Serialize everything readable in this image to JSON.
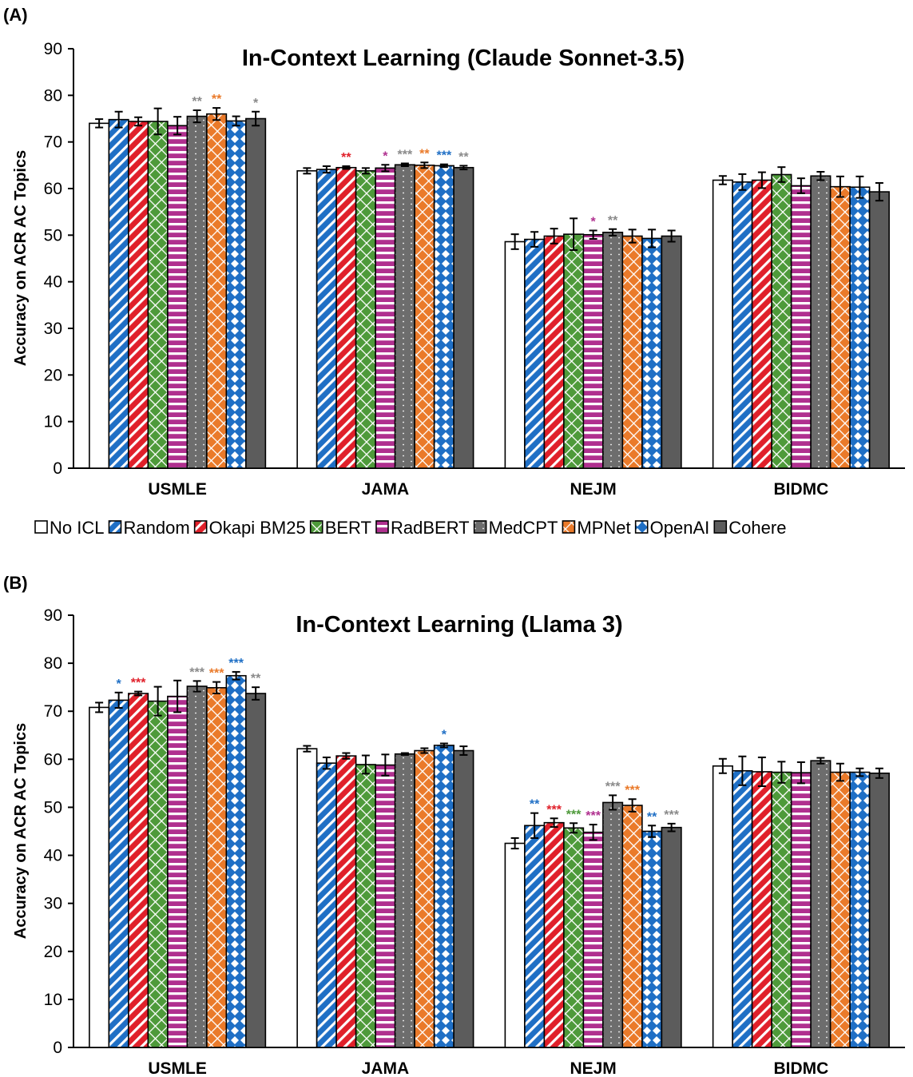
{
  "legend": {
    "entries": [
      {
        "name": "No ICL",
        "color": "#ffffff",
        "pattern": "none"
      },
      {
        "name": "Random",
        "color": "#1f6fc5",
        "pattern": "diag"
      },
      {
        "name": "Okapi BM25",
        "color": "#e0202a",
        "pattern": "diag"
      },
      {
        "name": "BERT",
        "color": "#4e9a3a",
        "pattern": "lattice"
      },
      {
        "name": "RadBERT",
        "color": "#b0308f",
        "pattern": "hstripe"
      },
      {
        "name": "MedCPT",
        "color": "#6d6d6d",
        "pattern": "dots"
      },
      {
        "name": "MPNet",
        "color": "#ea7a2a",
        "pattern": "lattice"
      },
      {
        "name": "OpenAI",
        "color": "#1f6fc5",
        "pattern": "diamond"
      },
      {
        "name": "Cohere",
        "color": "#5c5c5c",
        "pattern": "none"
      }
    ]
  },
  "chart_data": [
    {
      "type": "bar",
      "panel_label": "(A)",
      "title": "In-Context Learning (Claude Sonnet-3.5)",
      "xlabel": "",
      "ylabel": "Accuracy on ACR AC Topics",
      "ylim": [
        0,
        90
      ],
      "yticks": [
        "0",
        "10",
        "20",
        "30",
        "40",
        "50",
        "60",
        "70",
        "80",
        "90"
      ],
      "categories": [
        "USMLE",
        "JAMA",
        "NEJM",
        "BIDMC"
      ],
      "series": [
        {
          "name": "No ICL",
          "values": [
            74,
            63.8,
            48.6,
            61.8
          ],
          "errors": [
            0.9,
            0.6,
            1.6,
            0.9
          ],
          "sig": [
            "",
            "",
            "",
            ""
          ]
        },
        {
          "name": "Random",
          "values": [
            74.8,
            64.1,
            49.1,
            61.4
          ],
          "errors": [
            1.7,
            0.7,
            1.6,
            1.7
          ],
          "sig": [
            "",
            "",
            "",
            ""
          ]
        },
        {
          "name": "Okapi BM25",
          "values": [
            74.4,
            64.5,
            49.8,
            61.8
          ],
          "errors": [
            0.9,
            0.3,
            1.6,
            1.7
          ],
          "sig": [
            "",
            "**",
            "",
            ""
          ]
        },
        {
          "name": "BERT",
          "values": [
            74.4,
            63.8,
            50.2,
            63
          ],
          "errors": [
            2.8,
            0.6,
            3.4,
            1.6
          ],
          "sig": [
            "",
            "",
            "",
            ""
          ]
        },
        {
          "name": "RadBERT",
          "values": [
            73.5,
            64.4,
            50.1,
            60.6
          ],
          "errors": [
            1.9,
            0.7,
            0.9,
            1.6
          ],
          "sig": [
            "",
            "*",
            "*",
            ""
          ]
        },
        {
          "name": "MedCPT",
          "values": [
            75.5,
            65.1,
            50.6,
            62.7
          ],
          "errors": [
            1.3,
            0.3,
            0.7,
            0.9
          ],
          "sig": [
            "**",
            "***",
            "**",
            ""
          ]
        },
        {
          "name": "MPNet",
          "values": [
            76,
            65,
            49.8,
            60.4
          ],
          "errors": [
            1.3,
            0.6,
            1.4,
            2.2
          ],
          "sig": [
            "**",
            "**",
            "",
            ""
          ]
        },
        {
          "name": "OpenAI",
          "values": [
            74.5,
            64.9,
            49.3,
            60.3
          ],
          "errors": [
            1,
            0.3,
            1.9,
            2.3
          ],
          "sig": [
            "",
            "***",
            "",
            ""
          ]
        },
        {
          "name": "Cohere",
          "values": [
            75,
            64.5,
            49.8,
            59.3
          ],
          "errors": [
            1.5,
            0.4,
            1.2,
            1.9
          ],
          "sig": [
            "*",
            "**",
            "",
            ""
          ]
        }
      ]
    },
    {
      "type": "bar",
      "panel_label": "(B)",
      "title": "In-Context Learning (Llama 3)",
      "xlabel": "",
      "ylabel": "Accuracy on ACR AC Topics",
      "ylim": [
        0,
        90
      ],
      "yticks": [
        "0",
        "10",
        "20",
        "30",
        "40",
        "50",
        "60",
        "70",
        "80",
        "90"
      ],
      "categories": [
        "USMLE",
        "JAMA",
        "NEJM",
        "BIDMC"
      ],
      "series": [
        {
          "name": "No ICL",
          "values": [
            70.8,
            62.2,
            42.5,
            58.6
          ],
          "errors": [
            1,
            0.6,
            1.1,
            1.5
          ],
          "sig": [
            "",
            "",
            "",
            ""
          ]
        },
        {
          "name": "Random",
          "values": [
            72.3,
            59.2,
            46.2,
            57.6
          ],
          "errors": [
            1.6,
            1.2,
            2.6,
            3
          ]
        },
        {
          "name": "Okapi BM25",
          "values": [
            73.7,
            60.7,
            46.8,
            57.4
          ],
          "errors": [
            0.4,
            0.6,
            0.9,
            3
          ]
        },
        {
          "name": "BERT",
          "values": [
            72.1,
            58.9,
            45.7,
            57.3
          ],
          "errors": [
            3,
            1.9,
            1,
            2.2
          ]
        },
        {
          "name": "RadBERT",
          "values": [
            73.1,
            58.8,
            44.8,
            57.2
          ],
          "errors": [
            3.3,
            2.2,
            1.6,
            2.2
          ]
        },
        {
          "name": "MedCPT",
          "values": [
            75.2,
            61.1,
            51,
            59.7
          ],
          "errors": [
            1.1,
            0.2,
            1.5,
            0.6
          ]
        },
        {
          "name": "MPNet",
          "values": [
            74.9,
            61.8,
            50.4,
            57.3
          ],
          "errors": [
            1.2,
            0.5,
            1.3,
            1.8
          ]
        },
        {
          "name": "OpenAI",
          "values": [
            77.4,
            62.9,
            45,
            57.3
          ],
          "errors": [
            0.8,
            0.4,
            1.2,
            0.8
          ]
        },
        {
          "name": "Cohere",
          "values": [
            73.7,
            61.8,
            45.8,
            57.1
          ],
          "errors": [
            1.3,
            0.9,
            0.8,
            1
          ]
        }
      ],
      "significance": [
        [
          "",
          "",
          "",
          ""
        ],
        [
          "*",
          "",
          "**",
          ""
        ],
        [
          "***",
          "",
          "***",
          ""
        ],
        [
          "",
          "",
          "***",
          ""
        ],
        [
          "",
          "",
          "***",
          ""
        ],
        [
          "***",
          "",
          "***",
          ""
        ],
        [
          "***",
          "",
          "***",
          ""
        ],
        [
          "***",
          "*",
          "**",
          ""
        ],
        [
          "**",
          "",
          "***",
          ""
        ]
      ]
    }
  ]
}
